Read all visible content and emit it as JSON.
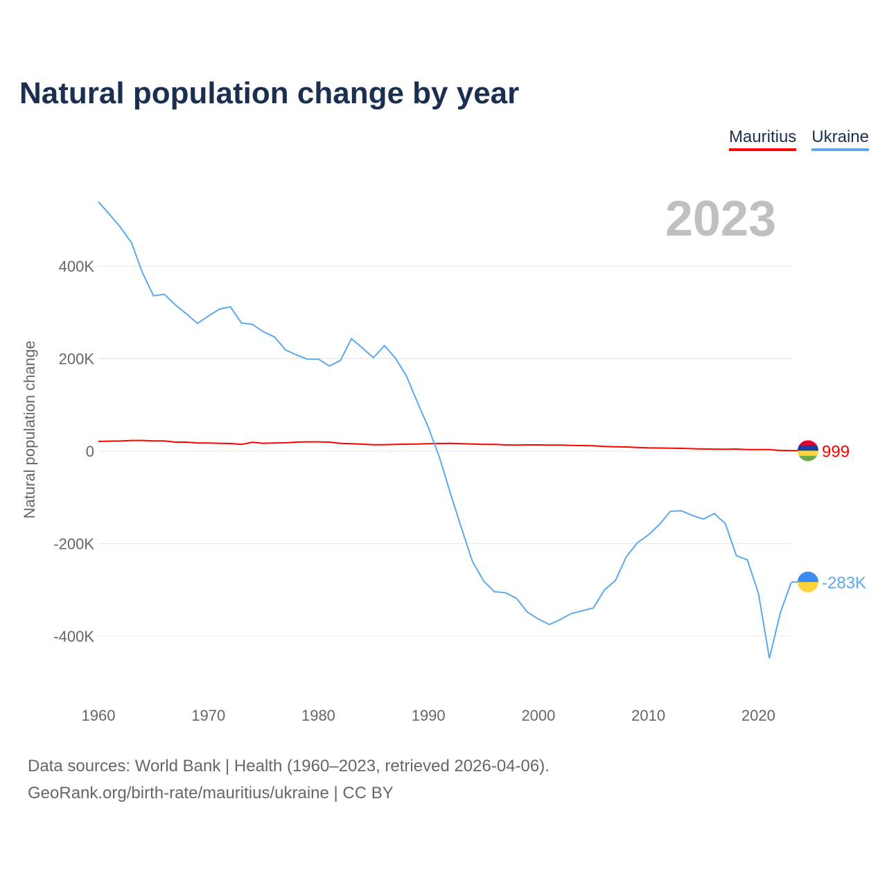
{
  "title": "Natural population change by year",
  "footer": {
    "line1": "Data sources: World Bank | Health (1960–2023, retrieved 2026-04-06).",
    "line2": "GeoRank.org/birth-rate/mauritius/ukraine | CC BY"
  },
  "chart_data": {
    "type": "line",
    "title": "Natural population change by year",
    "ylabel": "Natural population change",
    "xlabel": "",
    "year_label": "2023",
    "xlim": [
      1960,
      2023
    ],
    "ylim": [
      -500000,
      550000
    ],
    "x_ticks": [
      1960,
      1970,
      1980,
      1990,
      2000,
      2010,
      2020
    ],
    "y_ticks": [
      {
        "v": 400000,
        "label": "400K"
      },
      {
        "v": 200000,
        "label": "200K"
      },
      {
        "v": 0,
        "label": "0"
      },
      {
        "v": -200000,
        "label": "-200K"
      },
      {
        "v": -400000,
        "label": "-400K"
      }
    ],
    "grid": true,
    "legend_position": "top-right",
    "series": [
      {
        "name": "Mauritius",
        "color": "#ff0000",
        "end_label": "999",
        "flag": "mauritius-flag",
        "values": [
          21000,
          21500,
          21800,
          23000,
          23000,
          22000,
          22000,
          19500,
          19500,
          17500,
          17500,
          17000,
          16500,
          14500,
          19000,
          17000,
          17500,
          18000,
          19500,
          20000,
          20000,
          19500,
          17000,
          16000,
          15000,
          14000,
          14000,
          14500,
          15000,
          15500,
          16000,
          16500,
          17000,
          16000,
          15500,
          14500,
          14500,
          13500,
          13000,
          13500,
          13500,
          13000,
          13000,
          12500,
          12000,
          11500,
          10000,
          9500,
          9000,
          8000,
          7000,
          6800,
          6500,
          6000,
          5200,
          4700,
          4300,
          4000,
          4500,
          3500,
          3300,
          3500,
          1500,
          999
        ],
        "note_first_value_year": 1960
      },
      {
        "name": "Ukraine",
        "color": "#5ca8ee",
        "end_label": "-283K",
        "flag": "ukraine-flag",
        "values": [
          539000,
          512000,
          484000,
          451000,
          386000,
          336000,
          339000,
          316000,
          297000,
          276000,
          292000,
          307000,
          312000,
          277000,
          274000,
          258000,
          247000,
          219000,
          208000,
          199000,
          199000,
          184000,
          196000,
          243000,
          223000,
          202000,
          228000,
          201000,
          163000,
          106000,
          51000,
          -13000,
          -91000,
          -166000,
          -238000,
          -280000,
          -304000,
          -306000,
          -318000,
          -348000,
          -363000,
          -375000,
          -364000,
          -351000,
          -345000,
          -339000,
          -300000,
          -280000,
          -228000,
          -198000,
          -181000,
          -159000,
          -130000,
          -129000,
          -139000,
          -147000,
          -135000,
          -157000,
          -226000,
          -235000,
          -307000,
          -448000,
          -349000,
          -283000
        ]
      }
    ]
  }
}
